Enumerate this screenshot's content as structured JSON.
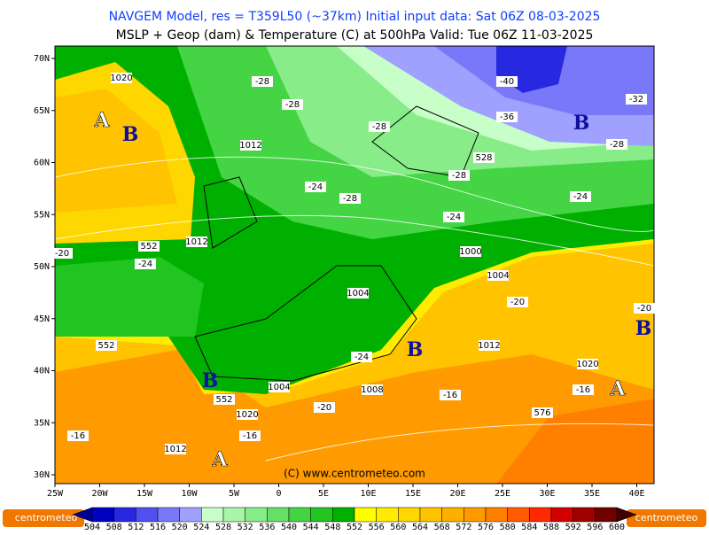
{
  "header": {
    "line1": "NAVGEM Model, res = T359L50 (~37km)    Initial input data: Sat 06Z 08-03-2025",
    "line2": "MSLP + Geop (dam) & Temperature (C) at 500hPa  Valid: Tue 06Z 11-03-2025"
  },
  "lat_labels": [
    "70N",
    "65N",
    "60N",
    "55N",
    "50N",
    "45N",
    "40N",
    "35N",
    "30N"
  ],
  "lon_labels": [
    "25W",
    "20W",
    "15W",
    "10W",
    "5W",
    "0",
    "5E",
    "10E",
    "15E",
    "20E",
    "25E",
    "30E",
    "35E",
    "40E"
  ],
  "colorbar": {
    "labels": [
      504,
      508,
      512,
      516,
      520,
      524,
      528,
      532,
      536,
      540,
      544,
      548,
      552,
      556,
      560,
      564,
      568,
      572,
      576,
      580,
      584,
      588,
      592,
      596,
      600
    ],
    "colors": [
      "#000090",
      "#0000c0",
      "#2828e0",
      "#5050f0",
      "#7878f8",
      "#a0a0ff",
      "#c8ffc8",
      "#a8f5a8",
      "#88ec88",
      "#66e066",
      "#44d444",
      "#22c422",
      "#00b000",
      "#ffff00",
      "#ffeb00",
      "#ffd700",
      "#ffc300",
      "#ffaf00",
      "#ff9b00",
      "#ff8000",
      "#ff5a00",
      "#ff2800",
      "#d20000",
      "#a00000",
      "#700000",
      "#400000"
    ]
  },
  "contour_labels": [
    "1020",
    "-28",
    "-28",
    "-28",
    "1012",
    "-24",
    "-28",
    "-28",
    "528",
    "-40",
    "-36",
    "-32",
    "-28",
    "-24",
    "-24",
    "1012",
    "552",
    "-20",
    "-24",
    "1000",
    "1004",
    "1004",
    "-20",
    "-20",
    "552",
    "1012",
    "-24",
    "1020",
    "1004",
    "1008",
    "-16",
    "-16",
    "552",
    "-20",
    "1020",
    "576",
    "-16",
    "-16",
    "1012"
  ],
  "pressure_centers": [
    "A",
    "B",
    "B",
    "B",
    "B",
    "B",
    "A",
    "A"
  ],
  "copyright": "(C) www.centrometeo.com",
  "logo_left": "centrometeo",
  "logo_right": "centrometeo"
}
